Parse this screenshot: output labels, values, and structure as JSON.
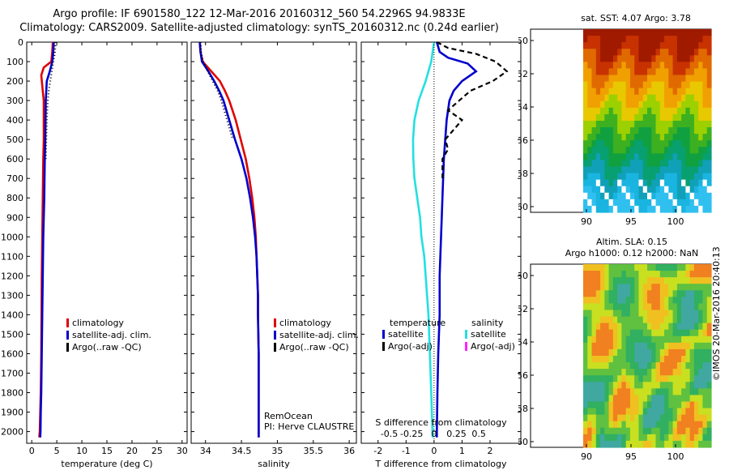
{
  "header": {
    "line1": "Argo profile: IF 6901580_122 12-Mar-2016 20160312_560 54.2296S 94.9833E",
    "line2": "Climatology: CARS2009. Satellite-adjusted climatology: synTS_20160312.nc (0.24d earlier)"
  },
  "colors": {
    "climatology": "#e00000",
    "satellite_adj": "#0000cc",
    "argo": "#000000",
    "salinity_satellite": "#22e0e0",
    "salinity_argo": "#ff22ff"
  },
  "chart_data": [
    {
      "id": "temperature",
      "type": "line",
      "xlabel": "temperature (deg C)",
      "ylabel": "",
      "xlim": [
        -1,
        31
      ],
      "ylim": [
        2060,
        0
      ],
      "xticks": [
        0,
        5,
        10,
        15,
        20,
        25,
        30
      ],
      "yticks": [
        0,
        100,
        200,
        300,
        400,
        500,
        600,
        700,
        800,
        900,
        1000,
        1100,
        1200,
        1300,
        1400,
        1500,
        1600,
        1700,
        1800,
        1900,
        2000
      ],
      "legend": {
        "position": "center",
        "entries": [
          "climatology",
          "satellite-adj. clim.",
          "Argo(..raw -QC)"
        ]
      },
      "series": [
        {
          "name": "climatology",
          "color": "#e00000",
          "x": [
            4.2,
            4.1,
            3.9,
            2.4,
            1.9,
            2.2,
            2.4,
            2.4,
            2.4,
            2.3,
            2.2,
            2.1,
            2.0,
            1.95,
            1.9,
            1.8,
            1.6,
            1.5
          ],
          "y": [
            0,
            50,
            100,
            130,
            170,
            250,
            300,
            400,
            500,
            600,
            800,
            1000,
            1200,
            1400,
            1600,
            1800,
            2000,
            2030
          ]
        },
        {
          "name": "satellite-adj. clim.",
          "color": "#0000cc",
          "x": [
            4.4,
            4.3,
            4.1,
            3.6,
            3.0,
            2.8,
            2.75,
            2.7,
            2.6,
            2.5,
            2.3,
            2.2,
            2.1,
            2.0,
            1.9,
            1.8,
            1.75,
            1.7
          ],
          "y": [
            0,
            50,
            100,
            150,
            200,
            300,
            400,
            500,
            600,
            800,
            1000,
            1200,
            1400,
            1600,
            1800,
            1900,
            2000,
            2030
          ]
        },
        {
          "name": "Argo(..raw -QC)",
          "color": "#000000",
          "x": [
            4.8,
            4.6,
            4.3,
            4.0,
            3.7,
            3.4,
            3.2,
            3.0,
            2.9,
            2.8
          ],
          "y": [
            0,
            60,
            100,
            150,
            200,
            250,
            300,
            400,
            500,
            600
          ]
        }
      ]
    },
    {
      "id": "salinity",
      "type": "line",
      "xlabel": "salinity",
      "ylabel": "",
      "xlim": [
        33.8,
        36.1
      ],
      "ylim": [
        2060,
        0
      ],
      "xticks": [
        34,
        34.5,
        35,
        35.5,
        36
      ],
      "legend": {
        "position": "center",
        "entries": [
          "climatology",
          "satellite-adj. clim.",
          "Argo(..raw -QC)"
        ]
      },
      "annotations": [
        "RemOcean",
        "PI: Herve CLAUSTRE"
      ],
      "series": [
        {
          "name": "climatology",
          "color": "#e00000",
          "x": [
            33.92,
            33.93,
            33.96,
            34.08,
            34.2,
            34.27,
            34.33,
            34.42,
            34.49,
            34.56,
            34.61,
            34.65,
            34.68,
            34.7,
            34.71,
            34.72,
            34.73,
            34.73,
            34.74,
            34.74,
            34.74,
            34.74
          ],
          "y": [
            0,
            50,
            100,
            150,
            200,
            250,
            300,
            400,
            500,
            600,
            700,
            800,
            900,
            1000,
            1100,
            1200,
            1300,
            1400,
            1600,
            1800,
            2000,
            2030
          ]
        },
        {
          "name": "satellite-adj. clim.",
          "color": "#0000cc",
          "x": [
            33.92,
            33.93,
            33.95,
            34.04,
            34.12,
            34.19,
            34.25,
            34.33,
            34.41,
            34.5,
            34.57,
            34.62,
            34.66,
            34.69,
            34.71,
            34.72,
            34.73,
            34.73,
            34.74,
            34.74,
            34.74,
            34.74
          ],
          "y": [
            0,
            50,
            100,
            150,
            200,
            250,
            300,
            400,
            500,
            600,
            700,
            800,
            900,
            1000,
            1100,
            1200,
            1300,
            1400,
            1600,
            1800,
            2000,
            2030
          ]
        },
        {
          "name": "Argo(..raw -QC)",
          "color": "#000000",
          "x": [
            33.93,
            33.94,
            33.97,
            34.03,
            34.1,
            34.17,
            34.22,
            34.3,
            34.38
          ],
          "y": [
            0,
            60,
            100,
            150,
            200,
            250,
            300,
            400,
            500
          ]
        }
      ]
    },
    {
      "id": "difference",
      "type": "line",
      "xlabel": "T difference from climatology",
      "xlabel_top": "S difference from climatology",
      "xlim": [
        -2.6,
        3.1
      ],
      "ylim": [
        2060,
        0
      ],
      "xticks": [
        -2,
        -1,
        0,
        1,
        2
      ],
      "sticks": [
        -0.5,
        -0.25,
        0,
        0.25,
        0.5
      ],
      "legend": {
        "position": "center",
        "groups": [
          "temperature",
          "salinity"
        ],
        "entries": [
          "satellite",
          "Argo(-adj)",
          "satellite",
          "Argo(-adj)"
        ]
      },
      "series": [
        {
          "name": "temperature satellite",
          "color": "#0000cc",
          "x": [
            0.1,
            0.2,
            0.5,
            1.2,
            1.5,
            1.0,
            0.7,
            0.55,
            0.45,
            0.4,
            0.35,
            0.3,
            0.25,
            0.2,
            0.2,
            0.15,
            0.12,
            0.1,
            0.1
          ],
          "y": [
            0,
            50,
            80,
            110,
            150,
            200,
            250,
            300,
            400,
            500,
            600,
            800,
            1000,
            1200,
            1400,
            1600,
            1800,
            2000,
            2030
          ]
        },
        {
          "name": "temperature Argo(-adj)",
          "color": "#000000",
          "x": [
            0.1,
            0.5,
            1.5,
            2.2,
            2.6,
            2.1,
            1.3,
            0.9,
            0.5,
            1.0,
            0.7,
            0.4,
            0.5,
            0.3,
            0.3
          ],
          "y": [
            0,
            30,
            60,
            100,
            150,
            200,
            250,
            300,
            350,
            400,
            450,
            500,
            550,
            600,
            700
          ]
        },
        {
          "name": "salinity satellite",
          "color": "#22e0e0",
          "x": [
            0,
            -0.1,
            -0.3,
            -0.55,
            -0.7,
            -0.75,
            -0.74,
            -0.7,
            -0.6,
            -0.5,
            -0.45,
            -0.35,
            -0.3,
            -0.25,
            -0.2,
            -0.15,
            -0.1,
            -0.05
          ],
          "y": [
            0,
            100,
            200,
            300,
            400,
            500,
            600,
            700,
            800,
            900,
            1000,
            1100,
            1200,
            1300,
            1400,
            1600,
            1800,
            2030
          ]
        }
      ]
    }
  ],
  "maps": {
    "sst": {
      "title": "sat. SST: 4.07 Argo: 3.78",
      "yticks": [
        "-50",
        "-52",
        "-54",
        "-56",
        "-58",
        "-60"
      ],
      "xticks": [
        "90",
        "95",
        "100"
      ]
    },
    "sla": {
      "title_line1": "Altim. SLA: 0.15",
      "title_line2": "Argo h1000: 0.12 h2000: NaN",
      "yticks": [
        "-50",
        "-52",
        "-54",
        "-56",
        "-58",
        "-60"
      ],
      "xticks": [
        "90",
        "95",
        "100"
      ]
    }
  },
  "footer": {
    "credit": "©IMOS 20-Mar-2016 20:40:13"
  }
}
